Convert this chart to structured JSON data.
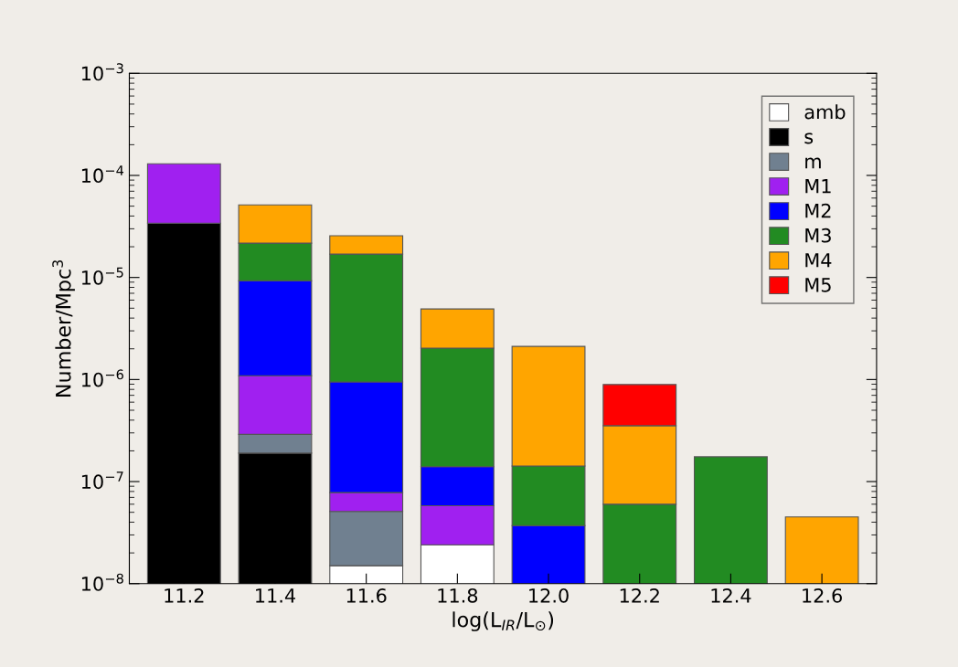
{
  "chart_data": {
    "type": "bar",
    "stacked": true,
    "log": "y",
    "xlabel": "log(L$_{IR}$/L$_{⊙}$)",
    "ylabel": "Number/Mpc$^{3}$",
    "categories": [
      "11.2",
      "11.4",
      "11.6",
      "11.8",
      "12.0",
      "12.2",
      "12.4",
      "12.6"
    ],
    "series": [
      {
        "name": "amb",
        "color": "#ffffff",
        "values": [
          null,
          null,
          1.5e-08,
          2.4e-08,
          null,
          null,
          null,
          null
        ]
      },
      {
        "name": "s",
        "color": "#000000",
        "values": [
          3.4e-05,
          1.9e-07,
          null,
          null,
          null,
          null,
          null,
          null
        ]
      },
      {
        "name": "m",
        "color": "#708090",
        "values": [
          null,
          1e-07,
          3.6e-08,
          null,
          null,
          null,
          null,
          null
        ]
      },
      {
        "name": "M1",
        "color": "#a020f0",
        "values": [
          9.6e-05,
          8e-07,
          2.7e-08,
          3.4e-08,
          null,
          null,
          null,
          null
        ]
      },
      {
        "name": "M2",
        "color": "#0000ff",
        "values": [
          null,
          8.2e-06,
          8.7e-07,
          8.2e-08,
          3.7e-08,
          null,
          null,
          null
        ]
      },
      {
        "name": "M3",
        "color": "#228b22",
        "values": [
          null,
          1.24e-05,
          1.6e-05,
          1.89e-06,
          1.05e-07,
          6e-08,
          1.75e-07,
          null
        ]
      },
      {
        "name": "M4",
        "color": "#ffa500",
        "values": [
          null,
          2.98e-05,
          8.7e-06,
          2.89e-06,
          1.97e-06,
          2.93e-07,
          null,
          4.5e-08
        ]
      },
      {
        "name": "M5",
        "color": "#ff0000",
        "values": [
          null,
          null,
          null,
          null,
          null,
          5.4e-07,
          null,
          null
        ]
      }
    ],
    "ylim": [
      1e-08,
      0.001
    ],
    "yticks": [
      {
        "value": 1e-08,
        "label": "10$^{−8}$"
      },
      {
        "value": 1e-07,
        "label": "10$^{−7}$"
      },
      {
        "value": 1e-06,
        "label": "10$^{−6}$"
      },
      {
        "value": 1e-05,
        "label": "10$^{−5}$"
      },
      {
        "value": 0.0001,
        "label": "10$^{−4}$"
      },
      {
        "value": 0.001,
        "label": "10$^{−3}$"
      }
    ],
    "legend": "top right",
    "grid": false
  }
}
